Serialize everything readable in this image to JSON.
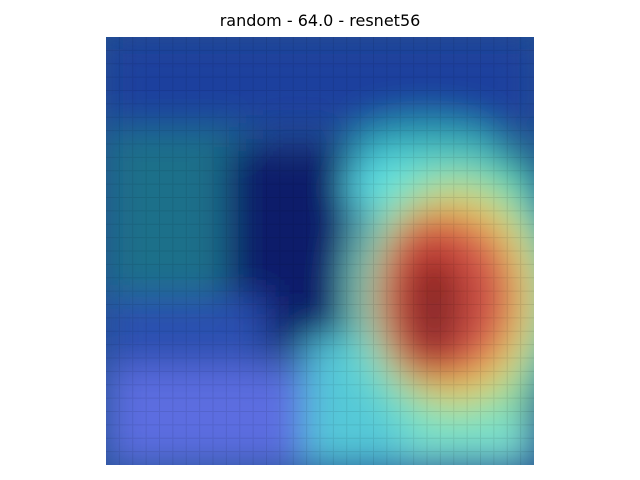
{
  "figure": {
    "title": "random - 64.0 - resnet56"
  },
  "heatmap": {
    "colormap": "jet-overlay",
    "peak_color": "#8b0000",
    "low_color": "#1a237e"
  }
}
